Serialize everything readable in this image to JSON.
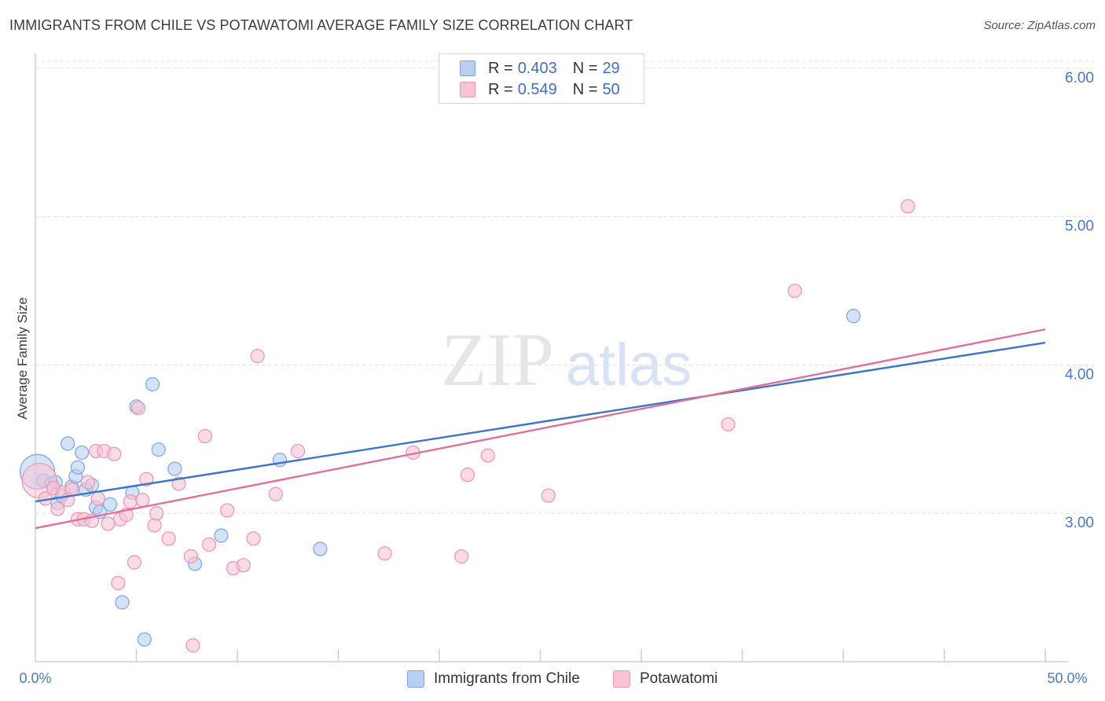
{
  "title": "IMMIGRANTS FROM CHILE VS POTAWATOMI AVERAGE FAMILY SIZE CORRELATION CHART",
  "source": "Source: ZipAtlas.com",
  "watermark": {
    "zip": "ZIP",
    "atlas": "atlas"
  },
  "legend": {
    "r_label": "R =",
    "n_label": "N =",
    "series": [
      {
        "r": "0.403",
        "n": "29",
        "fill": "#b8cff3",
        "stroke": "#7ea4e6"
      },
      {
        "r": "0.549",
        "n": "50",
        "fill": "#f9c3d3",
        "stroke": "#ee93b0"
      }
    ]
  },
  "chart_data": {
    "type": "scatter",
    "title": "IMMIGRANTS FROM CHILE VS POTAWATOMI AVERAGE FAMILY SIZE CORRELATION CHART",
    "xlabel": "",
    "ylabel": "Average Family Size",
    "xlim": [
      0,
      50
    ],
    "ylim": [
      2.0,
      6.1
    ],
    "x_tick_labels": [
      "0.0%",
      "50.0%"
    ],
    "y_ticks": [
      3.0,
      4.0,
      5.0,
      6.0
    ],
    "y_tick_labels": [
      "3.00",
      "4.00",
      "5.00",
      "6.00"
    ],
    "grid": "horizontal dashed",
    "legend_position": "top-center and bottom",
    "series": [
      {
        "name": "Immigrants from Chile",
        "color": "#3e73cc",
        "point_fill": "#b8cff3",
        "point_stroke": "#7ea4e6",
        "trend": {
          "x": [
            0,
            50
          ],
          "y": [
            3.08,
            4.15
          ]
        },
        "points": [
          {
            "x": 0.1,
            "y": 3.28,
            "big": true
          },
          {
            "x": 0.4,
            "y": 3.22
          },
          {
            "x": 0.8,
            "y": 3.2
          },
          {
            "x": 1.0,
            "y": 3.21
          },
          {
            "x": 1.1,
            "y": 3.07
          },
          {
            "x": 1.3,
            "y": 3.12
          },
          {
            "x": 1.6,
            "y": 3.47
          },
          {
            "x": 1.8,
            "y": 3.18
          },
          {
            "x": 2.0,
            "y": 3.25
          },
          {
            "x": 2.1,
            "y": 3.31
          },
          {
            "x": 2.3,
            "y": 3.41
          },
          {
            "x": 2.5,
            "y": 3.16
          },
          {
            "x": 2.8,
            "y": 3.19
          },
          {
            "x": 3.0,
            "y": 3.04
          },
          {
            "x": 3.2,
            "y": 3.01
          },
          {
            "x": 3.7,
            "y": 3.06
          },
          {
            "x": 4.3,
            "y": 2.4
          },
          {
            "x": 4.8,
            "y": 3.14
          },
          {
            "x": 5.0,
            "y": 3.72
          },
          {
            "x": 5.4,
            "y": 2.15
          },
          {
            "x": 5.8,
            "y": 3.87
          },
          {
            "x": 6.1,
            "y": 3.43
          },
          {
            "x": 6.9,
            "y": 3.3
          },
          {
            "x": 7.9,
            "y": 2.66
          },
          {
            "x": 9.2,
            "y": 2.85
          },
          {
            "x": 12.1,
            "y": 3.36
          },
          {
            "x": 14.1,
            "y": 2.76
          },
          {
            "x": 40.5,
            "y": 4.33
          }
        ]
      },
      {
        "name": "Potawatomi",
        "color": "#e0709a",
        "point_fill": "#f9c3d3",
        "point_stroke": "#ee93b0",
        "trend": {
          "x": [
            0,
            50
          ],
          "y": [
            2.9,
            4.24
          ]
        },
        "points": [
          {
            "x": 0.2,
            "y": 3.22,
            "big": true
          },
          {
            "x": 0.5,
            "y": 3.1
          },
          {
            "x": 0.9,
            "y": 3.17
          },
          {
            "x": 1.1,
            "y": 3.03
          },
          {
            "x": 1.4,
            "y": 3.14
          },
          {
            "x": 1.6,
            "y": 3.09
          },
          {
            "x": 1.8,
            "y": 3.16
          },
          {
            "x": 2.1,
            "y": 2.96
          },
          {
            "x": 2.4,
            "y": 2.96
          },
          {
            "x": 2.6,
            "y": 3.21
          },
          {
            "x": 2.8,
            "y": 2.95
          },
          {
            "x": 3.0,
            "y": 3.42
          },
          {
            "x": 3.1,
            "y": 3.1
          },
          {
            "x": 3.4,
            "y": 3.42
          },
          {
            "x": 3.6,
            "y": 2.93
          },
          {
            "x": 3.9,
            "y": 3.4
          },
          {
            "x": 4.1,
            "y": 2.53
          },
          {
            "x": 4.2,
            "y": 2.96
          },
          {
            "x": 4.5,
            "y": 2.99
          },
          {
            "x": 4.7,
            "y": 3.08
          },
          {
            "x": 4.9,
            "y": 2.67
          },
          {
            "x": 5.1,
            "y": 3.71
          },
          {
            "x": 5.3,
            "y": 3.09
          },
          {
            "x": 5.5,
            "y": 3.23
          },
          {
            "x": 5.9,
            "y": 2.92
          },
          {
            "x": 6.0,
            "y": 3.0
          },
          {
            "x": 6.6,
            "y": 2.83
          },
          {
            "x": 7.1,
            "y": 3.2
          },
          {
            "x": 7.7,
            "y": 2.71
          },
          {
            "x": 7.8,
            "y": 2.11
          },
          {
            "x": 8.4,
            "y": 3.52
          },
          {
            "x": 8.6,
            "y": 2.79
          },
          {
            "x": 9.5,
            "y": 3.02
          },
          {
            "x": 9.8,
            "y": 2.63
          },
          {
            "x": 10.3,
            "y": 2.65
          },
          {
            "x": 10.8,
            "y": 2.83
          },
          {
            "x": 11.0,
            "y": 4.06
          },
          {
            "x": 11.9,
            "y": 3.13
          },
          {
            "x": 13.0,
            "y": 3.42
          },
          {
            "x": 17.3,
            "y": 2.73
          },
          {
            "x": 18.7,
            "y": 3.41
          },
          {
            "x": 21.1,
            "y": 2.71
          },
          {
            "x": 21.4,
            "y": 3.26
          },
          {
            "x": 22.4,
            "y": 3.39
          },
          {
            "x": 25.4,
            "y": 3.12
          },
          {
            "x": 34.3,
            "y": 3.6
          },
          {
            "x": 37.6,
            "y": 4.5
          },
          {
            "x": 43.2,
            "y": 5.07
          }
        ]
      }
    ]
  }
}
